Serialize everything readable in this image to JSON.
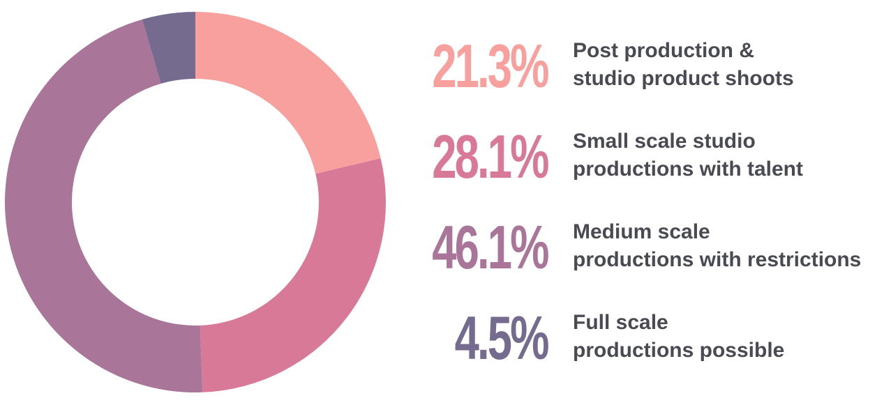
{
  "chart_data": {
    "type": "pie",
    "donut": true,
    "title": "",
    "start_angle_deg": 0,
    "direction": "clockwise",
    "series": [
      {
        "name": "Post production & studio product shoots",
        "value": 21.3,
        "label": "21.3%",
        "label_lines": [
          "Post production &",
          "studio product shoots"
        ],
        "color": "#f8a09e"
      },
      {
        "name": "Small scale studio productions with talent",
        "value": 28.1,
        "label": "28.1%",
        "label_lines": [
          "Small scale studio",
          "productions with talent"
        ],
        "color": "#d87a97"
      },
      {
        "name": "Medium scale productions with restrictions",
        "value": 46.1,
        "label": "46.1%",
        "label_lines": [
          "Medium scale",
          "productions with restrictions"
        ],
        "color": "#a97598"
      },
      {
        "name": "Full scale productions possible",
        "value": 4.5,
        "label": "4.5%",
        "label_lines": [
          "Full scale",
          "productions possible"
        ],
        "color": "#756b8e"
      }
    ],
    "legend_position": "right"
  }
}
